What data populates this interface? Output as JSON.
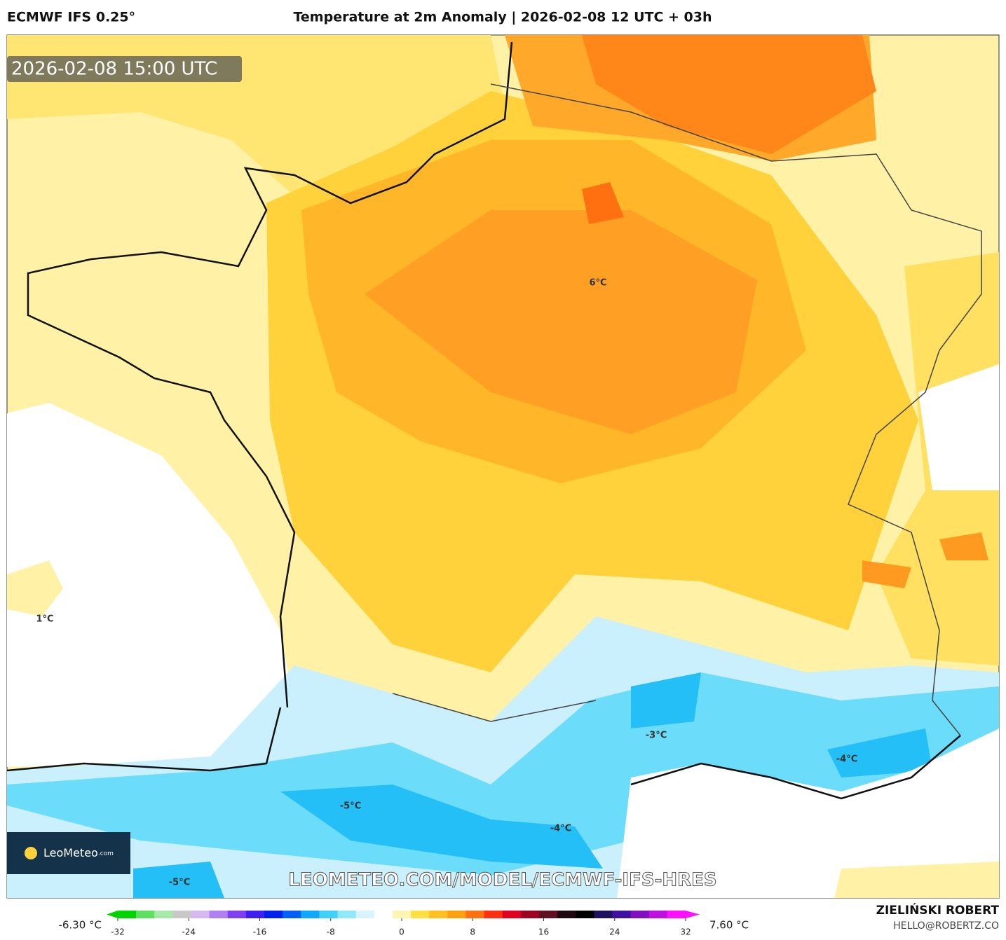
{
  "header": {
    "model": "ECMWF IFS 0.25°",
    "title": "Temperature at 2m Anomaly | 2026-02-08 12 UTC + 03h"
  },
  "map": {
    "timestamp": "2026-02-08 15:00 UTC",
    "labels": [
      "6°C",
      "1°C",
      "-3°C",
      "-4°C",
      "-5°C",
      "-4°C",
      "-5°C"
    ],
    "watermark": "LEOMETEO.COM/MODEL/ECMWF-IFS-HRES",
    "logo": {
      "name": "LeoMeteo",
      "suffix": ".com"
    }
  },
  "colorbar": {
    "min_label": "-6.30 °C",
    "max_label": "7.60 °C",
    "ticks": [
      -32,
      -24,
      -16,
      -8,
      0,
      8,
      16,
      24,
      32
    ],
    "colors": [
      "#00d400",
      "#60e060",
      "#a8e8a8",
      "#c8c8c8",
      "#d8b8f0",
      "#b080f0",
      "#8040f0",
      "#4020f0",
      "#0020f0",
      "#0060f8",
      "#10a8f8",
      "#40d0f8",
      "#90e8fc",
      "#d8f4fc",
      "#ffffff",
      "#fff4b0",
      "#ffe040",
      "#ffc020",
      "#ffa010",
      "#ff7010",
      "#ff3010",
      "#e00020",
      "#a00020",
      "#601020",
      "#200810",
      "#000000",
      "#201060",
      "#4010a0",
      "#8010c0",
      "#c010e0",
      "#ff10ff"
    ]
  },
  "footer": {
    "author": "ZIELIŃSKI ROBERT",
    "contact": "HELLO@ROBERTZ.CO"
  }
}
